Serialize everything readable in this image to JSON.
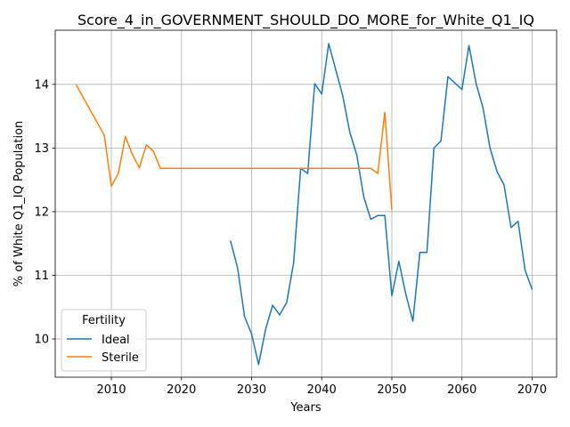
{
  "chart_data": {
    "type": "line",
    "title": "Score_4_in_GOVERNMENT_SHOULD_DO_MORE_for_White_Q1_IQ",
    "xlabel": "Years",
    "ylabel": "% of White Q1_IQ Population",
    "xlim": [
      2002,
      2073.5
    ],
    "ylim": [
      9.4,
      14.85
    ],
    "xticks": [
      2010,
      2020,
      2030,
      2040,
      2050,
      2060,
      2070
    ],
    "yticks": [
      10,
      11,
      12,
      13,
      14
    ],
    "grid": true,
    "legend": {
      "title": "Fertility",
      "placement": "lower-left"
    },
    "series": [
      {
        "name": "Ideal",
        "color": "#1f77b4",
        "x": [
          2027,
          2028,
          2029,
          2030,
          2031,
          2032,
          2033,
          2034,
          2035,
          2036,
          2037,
          2038,
          2039,
          2040,
          2041,
          2042,
          2043,
          2044,
          2045,
          2046,
          2047,
          2048,
          2049,
          2050,
          2051,
          2052,
          2053,
          2054,
          2055,
          2056,
          2057,
          2058,
          2059,
          2060,
          2061,
          2062,
          2063,
          2064,
          2065,
          2066,
          2067,
          2068,
          2069,
          2070
        ],
        "y": [
          11.54,
          11.12,
          10.35,
          10.08,
          9.6,
          10.15,
          10.53,
          10.38,
          10.57,
          11.2,
          12.68,
          12.6,
          14.01,
          13.85,
          14.64,
          14.23,
          13.82,
          13.25,
          12.89,
          12.23,
          11.88,
          11.94,
          11.94,
          10.68,
          11.22,
          10.7,
          10.28,
          11.36,
          11.36,
          13.0,
          13.11,
          14.12,
          14.02,
          13.92,
          14.61,
          14.02,
          13.63,
          13.0,
          12.63,
          12.42,
          11.75,
          11.85,
          11.08,
          10.78
        ]
      },
      {
        "name": "Sterile",
        "color": "#ff7f0e",
        "x": [
          2005,
          2009,
          2010,
          2011,
          2012,
          2013,
          2014,
          2015,
          2016,
          2017,
          2018,
          2020,
          2025,
          2030,
          2035,
          2040,
          2045,
          2047,
          2048,
          2049,
          2050
        ],
        "y": [
          13.99,
          13.2,
          12.4,
          12.6,
          13.18,
          12.9,
          12.69,
          13.05,
          12.95,
          12.68,
          12.68,
          12.68,
          12.68,
          12.68,
          12.68,
          12.68,
          12.68,
          12.68,
          12.6,
          13.56,
          12.03
        ]
      }
    ]
  }
}
